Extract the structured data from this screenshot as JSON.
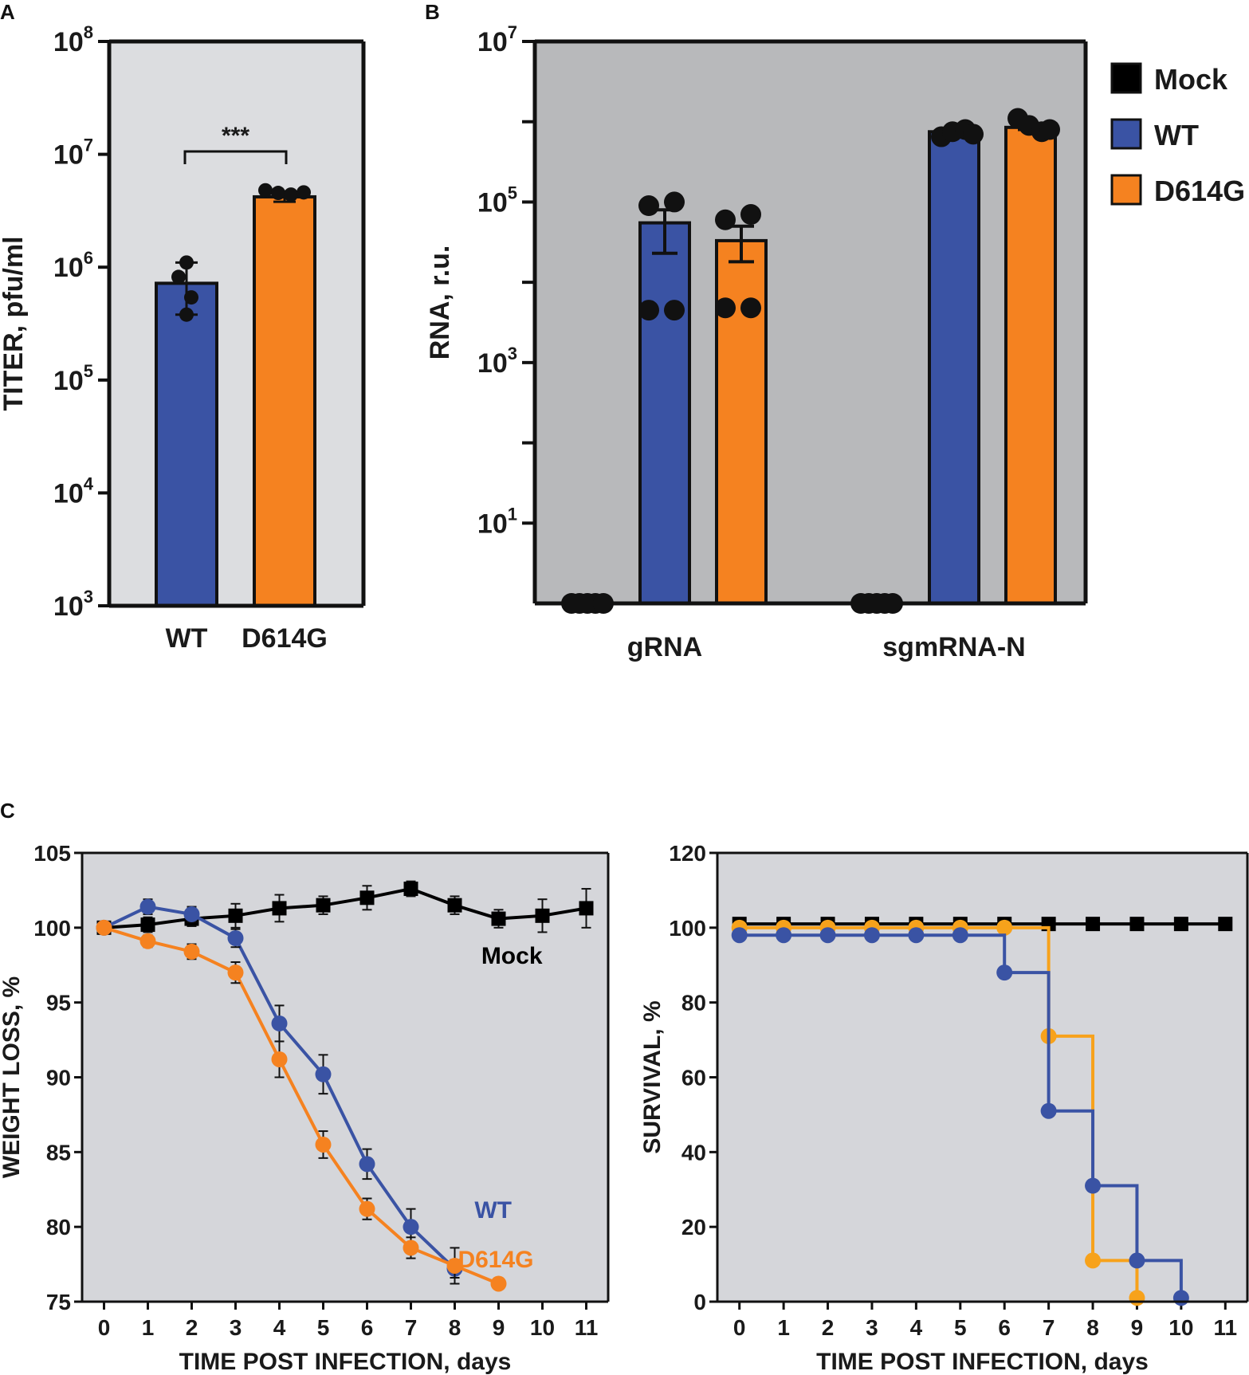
{
  "colors": {
    "panel_a_bg": "#dcdde0",
    "panel_b_bg": "#b8b9bb",
    "panel_c_bg": "#d5d6da",
    "mock": "#000000",
    "wt": "#3a53a4",
    "d614g": "#f58220",
    "d614g_survival": "#f7a21b"
  },
  "chart_data": [
    {
      "id": "A",
      "type": "bar",
      "panel_label": "A",
      "scale": "log10",
      "ylabel": "TITER, pfu/ml",
      "ylim_exp": [
        3,
        8
      ],
      "ytick_exps": [
        3,
        4,
        5,
        6,
        7,
        8
      ],
      "categories": [
        "WT",
        "D614G"
      ],
      "values": [
        720000,
        4200000
      ],
      "error": [
        [
          380000,
          1100000
        ],
        [
          3800000,
          4700000
        ]
      ],
      "points": [
        [
          1100000,
          820000,
          540000,
          380000
        ],
        [
          4800000,
          4550000,
          4400000,
          4600000
        ]
      ],
      "series_colors": [
        "wt",
        "d614g"
      ],
      "significance": "***"
    },
    {
      "id": "B",
      "type": "bar",
      "panel_label": "B",
      "scale": "log10",
      "ylabel": "RNA, r.u.",
      "ylim_exp": [
        0,
        7
      ],
      "ytick_labels": [
        {
          "exp": 1,
          "label": "10"
        },
        {
          "exp": 3,
          "label": "10"
        },
        {
          "exp": 5,
          "label": "10"
        },
        {
          "exp": 7,
          "label": "10"
        }
      ],
      "label_sup": [
        {
          "exp": 1,
          "sup": "1"
        },
        {
          "exp": 3,
          "sup": "3"
        },
        {
          "exp": 5,
          "sup": "5"
        },
        {
          "exp": 7,
          "sup": "7"
        }
      ],
      "minor_tick_exps": [
        2,
        4,
        6
      ],
      "categories": [
        "gRNA",
        "sgmRNA-N"
      ],
      "series": [
        {
          "name": "Mock",
          "color": "mock",
          "values": [
            1,
            1
          ],
          "points": [
            [
              1,
              1,
              1,
              1,
              1
            ],
            [
              1,
              1,
              1,
              1,
              1
            ]
          ]
        },
        {
          "name": "WT",
          "color": "wt",
          "values": [
            55000,
            750000
          ],
          "error": [
            [
              23000,
              80000
            ],
            [
              700000,
              800000
            ]
          ],
          "points": [
            [
              90000,
              100000,
              4500,
              4500
            ],
            [
              650000,
              750000,
              800000,
              700000
            ]
          ]
        },
        {
          "name": "D614G",
          "color": "d614g",
          "values": [
            33000,
            850000
          ],
          "error": [
            [
              18000,
              50000
            ],
            [
              800000,
              900000
            ]
          ],
          "points": [
            [
              60000,
              70000,
              4800,
              4800
            ],
            [
              1100000,
              900000,
              750000,
              800000
            ]
          ]
        }
      ],
      "legend": [
        "Mock",
        "WT",
        "D614G"
      ]
    },
    {
      "id": "C1",
      "type": "line",
      "panel_label": "C",
      "xlabel": "TIME POST INFECTION, days",
      "ylabel": "WEIGHT LOSS, %",
      "xlim": [
        -0.5,
        11.5
      ],
      "ylim": [
        75,
        105
      ],
      "xticks": [
        0,
        1,
        2,
        3,
        4,
        5,
        6,
        7,
        8,
        9,
        10,
        11
      ],
      "yticks": [
        75,
        80,
        85,
        90,
        95,
        100,
        105
      ],
      "series": [
        {
          "name": "Mock",
          "color": "mock",
          "marker": "square",
          "x": [
            0,
            1,
            2,
            3,
            4,
            5,
            6,
            7,
            8,
            9,
            10,
            11
          ],
          "y": [
            100.0,
            100.2,
            100.6,
            100.8,
            101.3,
            101.5,
            102.0,
            102.6,
            101.5,
            100.6,
            100.8,
            101.3
          ],
          "err": [
            0,
            0.5,
            0.5,
            0.8,
            0.9,
            0.6,
            0.8,
            0.5,
            0.6,
            0.6,
            1.1,
            1.3
          ]
        },
        {
          "name": "WT",
          "color": "wt",
          "marker": "circle",
          "x": [
            0,
            1,
            2,
            3,
            4,
            5,
            6,
            7,
            8
          ],
          "y": [
            100.0,
            101.4,
            100.9,
            99.3,
            93.6,
            90.2,
            84.2,
            80.0,
            77.2
          ],
          "err": [
            0,
            0.5,
            0.5,
            0.6,
            1.2,
            1.3,
            1.0,
            1.2,
            0.6
          ]
        },
        {
          "name": "D614G",
          "color": "d614g",
          "marker": "circle",
          "x": [
            0,
            1,
            2,
            3,
            4,
            5,
            6,
            7,
            8,
            9
          ],
          "y": [
            100.0,
            99.1,
            98.4,
            97.0,
            91.2,
            85.5,
            81.2,
            78.6,
            77.4,
            76.2
          ],
          "err": [
            0,
            0.4,
            0.5,
            0.7,
            1.2,
            0.9,
            0.7,
            0.7,
            1.2,
            0
          ]
        }
      ],
      "annotations": [
        {
          "text": "Mock",
          "color": "mock",
          "x": 10.0,
          "y": 97.6
        },
        {
          "text": "WT",
          "color": "wt",
          "x": 9.3,
          "y": 80.6
        },
        {
          "text": "D614G",
          "color": "d614g",
          "x": 9.8,
          "y": 77.3
        }
      ]
    },
    {
      "id": "C2",
      "type": "line",
      "step": true,
      "xlabel": "TIME POST INFECTION, days",
      "ylabel": "SURVIVAL, %",
      "xlim": [
        -0.5,
        11.5
      ],
      "ylim": [
        0,
        120
      ],
      "xticks": [
        0,
        1,
        2,
        3,
        4,
        5,
        6,
        7,
        8,
        9,
        10,
        11
      ],
      "yticks": [
        0,
        20,
        40,
        60,
        80,
        100,
        120
      ],
      "series": [
        {
          "name": "Mock",
          "color": "mock",
          "marker": "square",
          "x": [
            0,
            1,
            2,
            3,
            4,
            5,
            6,
            7,
            8,
            9,
            10,
            11
          ],
          "y": [
            101,
            101,
            101,
            101,
            101,
            101,
            101,
            101,
            101,
            101,
            101,
            101
          ]
        },
        {
          "name": "D614G",
          "color": "d614g_survival",
          "marker": "circle",
          "x": [
            0,
            1,
            2,
            3,
            4,
            5,
            6,
            7,
            8,
            9
          ],
          "y": [
            100,
            100,
            100,
            100,
            100,
            100,
            100,
            71,
            11,
            1
          ]
        },
        {
          "name": "WT",
          "color": "wt",
          "marker": "circle",
          "x": [
            0,
            1,
            2,
            3,
            4,
            5,
            6,
            7,
            8,
            9,
            10
          ],
          "y": [
            98,
            98,
            98,
            98,
            98,
            98,
            88,
            51,
            31,
            11,
            1
          ]
        }
      ]
    }
  ]
}
